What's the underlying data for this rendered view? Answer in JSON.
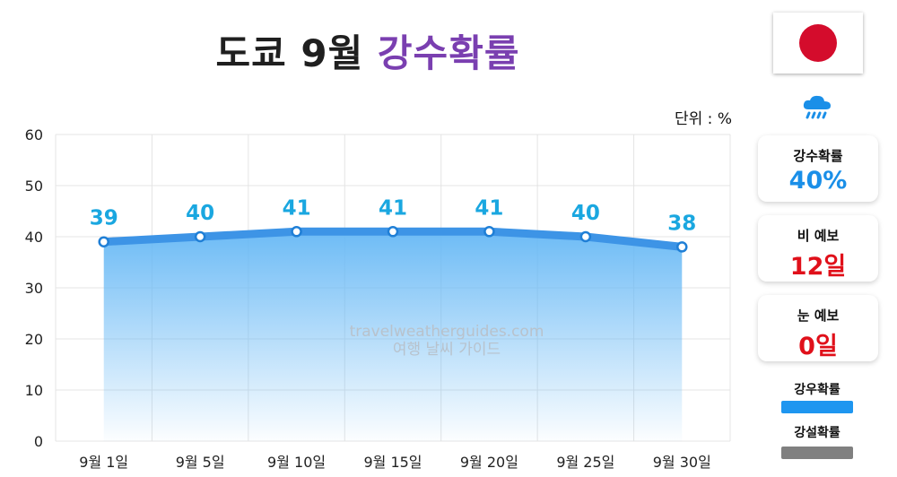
{
  "title": {
    "main": "도쿄 9월",
    "highlight": "강수확률"
  },
  "unit_label": "단위 : %",
  "watermark": {
    "line1": "travelweatherguides.com",
    "line2": "여행 날씨 가이드"
  },
  "sidebar": {
    "flag_icon": "japan-flag-icon",
    "weather_icon": "rain-cloud-icon",
    "cards": [
      {
        "label": "강수확률",
        "value": "40%",
        "color": "#1a8fe8"
      },
      {
        "label": "비 예보",
        "value": "12일",
        "color": "#e0101a"
      },
      {
        "label": "눈 예보",
        "value": "0일",
        "color": "#e0101a"
      }
    ],
    "legend": [
      {
        "label": "강우확률",
        "color": "#1e96f0"
      },
      {
        "label": "강설확률",
        "color": "#808080"
      }
    ]
  },
  "chart_data": {
    "type": "area",
    "categories": [
      "9월 1일",
      "9월 5일",
      "9월 10일",
      "9월 15일",
      "9월 20일",
      "9월 25일",
      "9월 30일"
    ],
    "series": [
      {
        "name": "강우확률",
        "values": [
          39,
          40,
          41,
          41,
          41,
          40,
          38
        ],
        "color": "#3d94e6"
      }
    ],
    "ylim": [
      0,
      60
    ],
    "yticks": [
      0,
      10,
      20,
      30,
      40,
      50,
      60
    ],
    "data_labels": true,
    "grid": true
  }
}
